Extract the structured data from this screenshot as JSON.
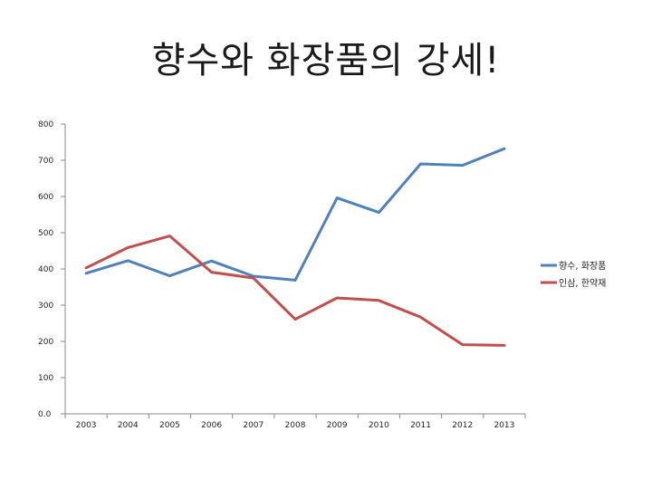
{
  "title": "향수와 화장품의 강세!",
  "chart_data": {
    "type": "line",
    "title": "향수와 화장품의 강세!",
    "xlabel": "",
    "ylabel": "",
    "x": [
      "2003",
      "2004",
      "2005",
      "2006",
      "2007",
      "2008",
      "2009",
      "2010",
      "2011",
      "2012",
      "2013"
    ],
    "y_ticks": [
      "0.0",
      "100",
      "200",
      "300",
      "400",
      "500",
      "600",
      "700",
      "800"
    ],
    "ylim": [
      0,
      800
    ],
    "grid": false,
    "legend_position": "right",
    "series": [
      {
        "name": "향수, 화장품",
        "color": "#4f81bd",
        "values": [
          388,
          423,
          381,
          422,
          380,
          369,
          596,
          556,
          690,
          686,
          732
        ]
      },
      {
        "name": "인삼, 한약재",
        "color": "#c0504d",
        "values": [
          403,
          459,
          491,
          391,
          375,
          261,
          320,
          313,
          267,
          191,
          189
        ]
      }
    ]
  }
}
